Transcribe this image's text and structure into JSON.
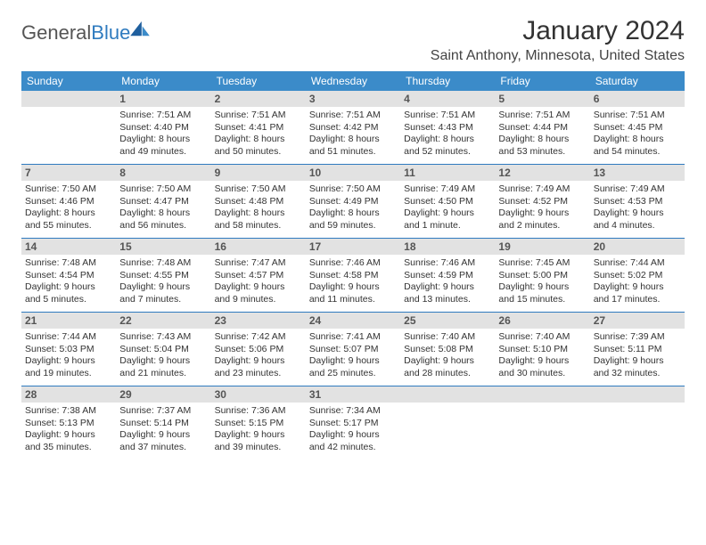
{
  "logo": {
    "word1": "General",
    "word2": "Blue"
  },
  "title": "January 2024",
  "location": "Saint Anthony, Minnesota, United States",
  "colors": {
    "header_bg": "#3b8bc9",
    "daynum_bg": "#e2e2e2",
    "row_border": "#2f7bbf",
    "text": "#333333"
  },
  "dow": [
    "Sunday",
    "Monday",
    "Tuesday",
    "Wednesday",
    "Thursday",
    "Friday",
    "Saturday"
  ],
  "weeks": [
    [
      {
        "n": "",
        "sr": "",
        "ss": "",
        "d1": "",
        "d2": ""
      },
      {
        "n": "1",
        "sr": "Sunrise: 7:51 AM",
        "ss": "Sunset: 4:40 PM",
        "d1": "Daylight: 8 hours",
        "d2": "and 49 minutes."
      },
      {
        "n": "2",
        "sr": "Sunrise: 7:51 AM",
        "ss": "Sunset: 4:41 PM",
        "d1": "Daylight: 8 hours",
        "d2": "and 50 minutes."
      },
      {
        "n": "3",
        "sr": "Sunrise: 7:51 AM",
        "ss": "Sunset: 4:42 PM",
        "d1": "Daylight: 8 hours",
        "d2": "and 51 minutes."
      },
      {
        "n": "4",
        "sr": "Sunrise: 7:51 AM",
        "ss": "Sunset: 4:43 PM",
        "d1": "Daylight: 8 hours",
        "d2": "and 52 minutes."
      },
      {
        "n": "5",
        "sr": "Sunrise: 7:51 AM",
        "ss": "Sunset: 4:44 PM",
        "d1": "Daylight: 8 hours",
        "d2": "and 53 minutes."
      },
      {
        "n": "6",
        "sr": "Sunrise: 7:51 AM",
        "ss": "Sunset: 4:45 PM",
        "d1": "Daylight: 8 hours",
        "d2": "and 54 minutes."
      }
    ],
    [
      {
        "n": "7",
        "sr": "Sunrise: 7:50 AM",
        "ss": "Sunset: 4:46 PM",
        "d1": "Daylight: 8 hours",
        "d2": "and 55 minutes."
      },
      {
        "n": "8",
        "sr": "Sunrise: 7:50 AM",
        "ss": "Sunset: 4:47 PM",
        "d1": "Daylight: 8 hours",
        "d2": "and 56 minutes."
      },
      {
        "n": "9",
        "sr": "Sunrise: 7:50 AM",
        "ss": "Sunset: 4:48 PM",
        "d1": "Daylight: 8 hours",
        "d2": "and 58 minutes."
      },
      {
        "n": "10",
        "sr": "Sunrise: 7:50 AM",
        "ss": "Sunset: 4:49 PM",
        "d1": "Daylight: 8 hours",
        "d2": "and 59 minutes."
      },
      {
        "n": "11",
        "sr": "Sunrise: 7:49 AM",
        "ss": "Sunset: 4:50 PM",
        "d1": "Daylight: 9 hours",
        "d2": "and 1 minute."
      },
      {
        "n": "12",
        "sr": "Sunrise: 7:49 AM",
        "ss": "Sunset: 4:52 PM",
        "d1": "Daylight: 9 hours",
        "d2": "and 2 minutes."
      },
      {
        "n": "13",
        "sr": "Sunrise: 7:49 AM",
        "ss": "Sunset: 4:53 PM",
        "d1": "Daylight: 9 hours",
        "d2": "and 4 minutes."
      }
    ],
    [
      {
        "n": "14",
        "sr": "Sunrise: 7:48 AM",
        "ss": "Sunset: 4:54 PM",
        "d1": "Daylight: 9 hours",
        "d2": "and 5 minutes."
      },
      {
        "n": "15",
        "sr": "Sunrise: 7:48 AM",
        "ss": "Sunset: 4:55 PM",
        "d1": "Daylight: 9 hours",
        "d2": "and 7 minutes."
      },
      {
        "n": "16",
        "sr": "Sunrise: 7:47 AM",
        "ss": "Sunset: 4:57 PM",
        "d1": "Daylight: 9 hours",
        "d2": "and 9 minutes."
      },
      {
        "n": "17",
        "sr": "Sunrise: 7:46 AM",
        "ss": "Sunset: 4:58 PM",
        "d1": "Daylight: 9 hours",
        "d2": "and 11 minutes."
      },
      {
        "n": "18",
        "sr": "Sunrise: 7:46 AM",
        "ss": "Sunset: 4:59 PM",
        "d1": "Daylight: 9 hours",
        "d2": "and 13 minutes."
      },
      {
        "n": "19",
        "sr": "Sunrise: 7:45 AM",
        "ss": "Sunset: 5:00 PM",
        "d1": "Daylight: 9 hours",
        "d2": "and 15 minutes."
      },
      {
        "n": "20",
        "sr": "Sunrise: 7:44 AM",
        "ss": "Sunset: 5:02 PM",
        "d1": "Daylight: 9 hours",
        "d2": "and 17 minutes."
      }
    ],
    [
      {
        "n": "21",
        "sr": "Sunrise: 7:44 AM",
        "ss": "Sunset: 5:03 PM",
        "d1": "Daylight: 9 hours",
        "d2": "and 19 minutes."
      },
      {
        "n": "22",
        "sr": "Sunrise: 7:43 AM",
        "ss": "Sunset: 5:04 PM",
        "d1": "Daylight: 9 hours",
        "d2": "and 21 minutes."
      },
      {
        "n": "23",
        "sr": "Sunrise: 7:42 AM",
        "ss": "Sunset: 5:06 PM",
        "d1": "Daylight: 9 hours",
        "d2": "and 23 minutes."
      },
      {
        "n": "24",
        "sr": "Sunrise: 7:41 AM",
        "ss": "Sunset: 5:07 PM",
        "d1": "Daylight: 9 hours",
        "d2": "and 25 minutes."
      },
      {
        "n": "25",
        "sr": "Sunrise: 7:40 AM",
        "ss": "Sunset: 5:08 PM",
        "d1": "Daylight: 9 hours",
        "d2": "and 28 minutes."
      },
      {
        "n": "26",
        "sr": "Sunrise: 7:40 AM",
        "ss": "Sunset: 5:10 PM",
        "d1": "Daylight: 9 hours",
        "d2": "and 30 minutes."
      },
      {
        "n": "27",
        "sr": "Sunrise: 7:39 AM",
        "ss": "Sunset: 5:11 PM",
        "d1": "Daylight: 9 hours",
        "d2": "and 32 minutes."
      }
    ],
    [
      {
        "n": "28",
        "sr": "Sunrise: 7:38 AM",
        "ss": "Sunset: 5:13 PM",
        "d1": "Daylight: 9 hours",
        "d2": "and 35 minutes."
      },
      {
        "n": "29",
        "sr": "Sunrise: 7:37 AM",
        "ss": "Sunset: 5:14 PM",
        "d1": "Daylight: 9 hours",
        "d2": "and 37 minutes."
      },
      {
        "n": "30",
        "sr": "Sunrise: 7:36 AM",
        "ss": "Sunset: 5:15 PM",
        "d1": "Daylight: 9 hours",
        "d2": "and 39 minutes."
      },
      {
        "n": "31",
        "sr": "Sunrise: 7:34 AM",
        "ss": "Sunset: 5:17 PM",
        "d1": "Daylight: 9 hours",
        "d2": "and 42 minutes."
      },
      {
        "n": "",
        "sr": "",
        "ss": "",
        "d1": "",
        "d2": ""
      },
      {
        "n": "",
        "sr": "",
        "ss": "",
        "d1": "",
        "d2": ""
      },
      {
        "n": "",
        "sr": "",
        "ss": "",
        "d1": "",
        "d2": ""
      }
    ]
  ]
}
